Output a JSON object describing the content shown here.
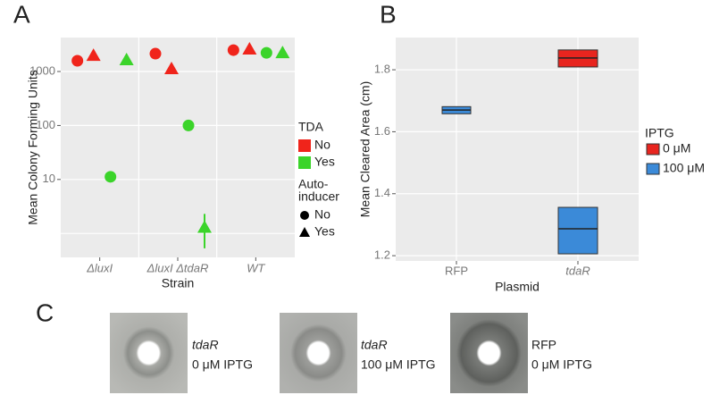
{
  "chart_data": [
    {
      "type": "dotplot",
      "panel": "A",
      "x_label": "Strain",
      "y_label": "Mean Colony Forming Units",
      "categories": [
        "ΔluxI",
        "ΔluxI ΔtdaR",
        "WT"
      ],
      "log_y": true,
      "ylim": [
        0.36,
        4260
      ],
      "yticks": [
        10,
        100,
        1000
      ],
      "ygrid_unlabeled": [
        1
      ],
      "grid": true,
      "legends": [
        {
          "title": [
            "TDA"
          ],
          "entries": [
            "No",
            "Yes"
          ],
          "colors": [
            "#f0241b",
            "#3bd42a"
          ]
        },
        {
          "title": [
            "Auto-",
            "inducer"
          ],
          "entries": [
            "No",
            "Yes"
          ],
          "shapes": [
            "circle",
            "triangle"
          ]
        }
      ],
      "series": [
        {
          "tda": 0,
          "autoinducer": 0,
          "values": [
            1580,
            2140,
            2490
          ]
        },
        {
          "tda": 0,
          "autoinducer": 1,
          "values": [
            1980,
            1120,
            2590
          ]
        },
        {
          "tda": 1,
          "autoinducer": 0,
          "values": [
            11.2,
            100,
            2220
          ]
        },
        {
          "tda": 1,
          "autoinducer": 1,
          "values": [
            1640,
            1.29,
            2220
          ],
          "error_low": [
            null,
            0.53,
            null
          ],
          "error_high": [
            null,
            2.3,
            null
          ]
        }
      ]
    },
    {
      "type": "box",
      "panel": "B",
      "x_label": "Plasmid",
      "y_label": "Mean Cleared Area  (cm)",
      "categories": [
        "RFP",
        "tdaR"
      ],
      "ylim": [
        1.183,
        1.904
      ],
      "yticks": [
        1.2,
        1.4,
        1.6,
        1.8
      ],
      "grid": true,
      "legend_title": "IPTG",
      "series": [
        {
          "name": "0 μM",
          "color": "#e8251f",
          "q1": [
            null,
            1.809
          ],
          "median": [
            null,
            1.838
          ],
          "q3": [
            null,
            1.864
          ]
        },
        {
          "name": "100 μM",
          "color": "#3b8ad8",
          "q1": [
            1.658,
            1.206
          ],
          "median": [
            1.67,
            1.287
          ],
          "q3": [
            1.681,
            1.356
          ]
        }
      ]
    }
  ],
  "panel_c": {
    "label": "C",
    "images": [
      {
        "plasmid": "tdaR",
        "condition": "0 μM IPTG"
      },
      {
        "plasmid": "tdaR",
        "condition": "100 μM IPTG"
      },
      {
        "plasmid": "RFP",
        "condition": "0 μM IPTG"
      }
    ]
  }
}
